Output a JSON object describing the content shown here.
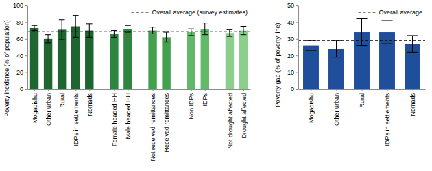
{
  "chart_data": [
    {
      "type": "bar",
      "y_label": "Poverty incidence (% of population)",
      "categories": [
        "Mogadishu",
        "Other urban",
        "Rural",
        "IDPs in settlements",
        "Nomads",
        "Female headed HH",
        "Male headed HH",
        "Not received remittances",
        "Received remittances",
        "Non IDPs",
        "IDPs",
        "Not drought affected",
        "Drought affected"
      ],
      "values": [
        73,
        60,
        71,
        75,
        70,
        66,
        72,
        70,
        62,
        68,
        72,
        67,
        70
      ],
      "errors": [
        3,
        5,
        12,
        13,
        8,
        4,
        4,
        4,
        6,
        4,
        7,
        4,
        5
      ],
      "colors": [
        "#1e6530",
        "#1e6530",
        "#1e6530",
        "#1e6530",
        "#1e6530",
        "#2e8540",
        "#2e8540",
        "#43a04f",
        "#43a04f",
        "#63b96a",
        "#63b96a",
        "#8ccf8c",
        "#8ccf8c"
      ],
      "ylim": [
        0,
        100
      ],
      "yticks": [
        0,
        20,
        40,
        60,
        80,
        100
      ],
      "reference_line": {
        "value": 69,
        "label": "Overall average (survey estimates)",
        "line_style": "dashed"
      }
    },
    {
      "type": "bar",
      "y_label": "Poverty gap (% of poverty line)",
      "categories": [
        "Mogadishu",
        "Other urban",
        "Rural",
        "IDPs in settlements",
        "Nomads"
      ],
      "values": [
        26,
        24,
        34,
        34,
        27
      ],
      "errors": [
        3,
        5,
        8,
        7,
        5
      ],
      "color": "#1f4e9a",
      "ylim": [
        0,
        50
      ],
      "yticks": [
        0,
        10,
        20,
        30,
        40,
        50
      ],
      "reference_line": {
        "value": 29,
        "label": "Overall average",
        "line_style": "dashed"
      }
    }
  ]
}
